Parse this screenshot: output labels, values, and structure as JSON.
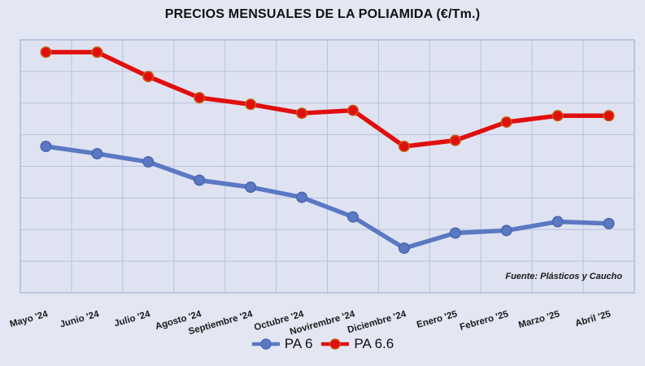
{
  "page": {
    "background": "#e3e6f3"
  },
  "chart": {
    "title": "PRECIOS MENSUALES DE LA POLIAMIDA (€/Tm.)",
    "source_note": "Fuente: Plásticos y Caucho"
  },
  "chart_data": {
    "type": "line",
    "title": "PRECIOS MENSUALES DE LA POLIAMIDA (€/Tm.)",
    "xlabel": "",
    "ylabel": "",
    "y_axis_labeled": false,
    "y_unit_note": "no numeric y-axis labels shown; values estimated in gridline-row units from plot bottom",
    "ylim": [
      0,
      8
    ],
    "grid": true,
    "grid_rows": 8,
    "grid_cols": 12,
    "legend_position": "bottom",
    "categories": [
      "Mayo '24",
      "Junio '24",
      "Julio '24",
      "Agosto '24",
      "Septiembre '24",
      "Octubre '24",
      "Novirembre '24",
      "Diciembre '24",
      "Enero '25",
      "Febrero '25",
      "Marzo '25",
      "Abril '25"
    ],
    "series": [
      {
        "name": "PA 6",
        "color": "#5b78c4",
        "marker_stroke": "#4a67ae",
        "values": [
          4.63,
          4.4,
          4.14,
          3.56,
          3.34,
          3.02,
          2.4,
          1.41,
          1.89,
          1.97,
          2.25,
          2.19
        ]
      },
      {
        "name": "PA 6.6",
        "color": "#e10e0e",
        "marker_stroke": "#c55a11",
        "values": [
          7.61,
          7.61,
          6.84,
          6.17,
          5.96,
          5.68,
          5.77,
          4.63,
          4.82,
          5.4,
          5.6,
          5.6
        ]
      }
    ],
    "colors": {
      "plot_background": "#dfe3f1",
      "gridline": "#b6c2de",
      "plot_border": "#a3b2d4",
      "axis_label_text": "#1a1a1a"
    }
  },
  "legend": {
    "items": [
      {
        "label": "PA 6"
      },
      {
        "label": "PA 6.6"
      }
    ]
  }
}
